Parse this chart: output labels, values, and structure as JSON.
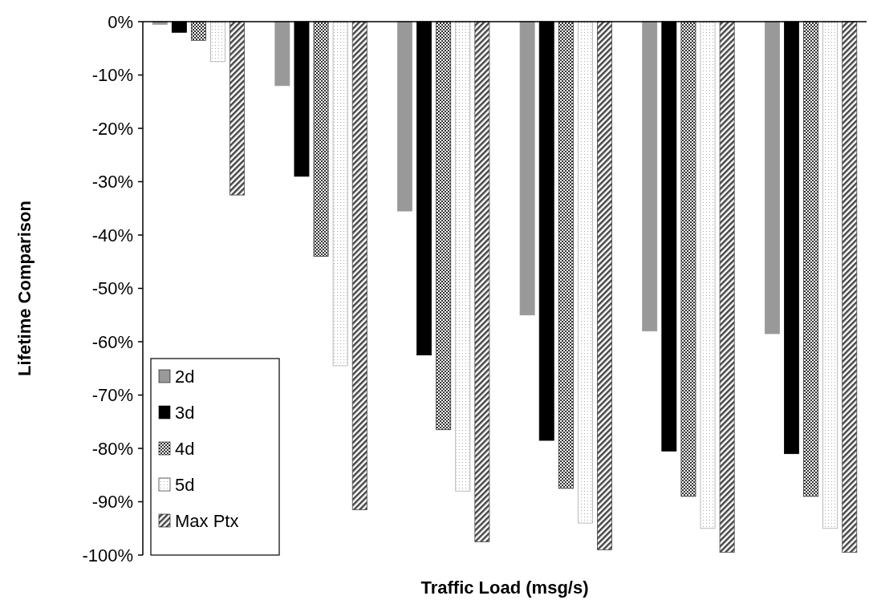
{
  "chart_data": {
    "type": "bar",
    "xlabel": "Traffic Load (msg/s)",
    "ylabel": "Lifetime Comparison",
    "categories": [
      null,
      null,
      null,
      null,
      null,
      null
    ],
    "series": [
      {
        "name": "2d",
        "color": "#999999",
        "values": [
          -0.5,
          -12,
          -35.5,
          -55,
          -58,
          -58.5
        ]
      },
      {
        "name": "3d",
        "color": "#000000",
        "values": [
          -2,
          -29,
          -62.5,
          -78.5,
          -80.5,
          -81
        ]
      },
      {
        "name": "4d",
        "color": "#333333",
        "values": [
          -3.5,
          -44,
          -76.5,
          -87.5,
          -89,
          -89
        ]
      },
      {
        "name": "5d",
        "color": "#aaaaaa",
        "values": [
          -7.5,
          -64.5,
          -88,
          -94,
          -95,
          -95
        ]
      },
      {
        "name": "Max Ptx",
        "color": "#444444",
        "values": [
          -32.5,
          -91.5,
          -97.5,
          -99,
          -99.5,
          -99.5
        ]
      }
    ],
    "ylim": [
      -100,
      0
    ],
    "yticks": [
      {
        "value": 0,
        "label": "0%"
      },
      {
        "value": -10,
        "label": "-10%"
      },
      {
        "value": -20,
        "label": "-20%"
      },
      {
        "value": -30,
        "label": "-30%"
      },
      {
        "value": -40,
        "label": "-40%"
      },
      {
        "value": -50,
        "label": "-50%"
      },
      {
        "value": -60,
        "label": "-60%"
      },
      {
        "value": -70,
        "label": "-70%"
      },
      {
        "value": -80,
        "label": "-80%"
      },
      {
        "value": -90,
        "label": "-90%"
      },
      {
        "value": -100,
        "label": "-100%"
      }
    ],
    "grid": false,
    "legend": "bottom left",
    "tick_labels": "y"
  }
}
